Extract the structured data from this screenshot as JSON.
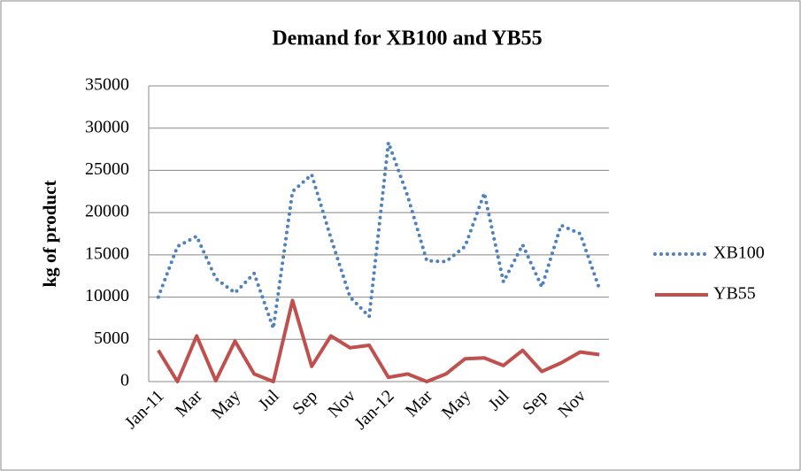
{
  "chart_data": {
    "type": "line",
    "title": "Demand for XB100 and YB55",
    "y_label": "kg of product",
    "categories": [
      "Jan-11",
      null,
      "Mar",
      null,
      "May",
      null,
      "Jul",
      null,
      "Sep",
      null,
      "Nov",
      null,
      "Jan-12",
      null,
      "Mar",
      null,
      "May",
      null,
      "Jul",
      null,
      "Sep",
      null,
      "Nov",
      null
    ],
    "series": [
      {
        "name": "XB100",
        "color": "#4f81bd",
        "dash": "dotted",
        "values": [
          10000,
          16000,
          17200,
          12200,
          10500,
          12800,
          6300,
          22500,
          24500,
          17000,
          10000,
          7700,
          28300,
          22000,
          14300,
          14200,
          16000,
          22300,
          11800,
          16200,
          11200,
          18500,
          17500,
          11000
        ]
      },
      {
        "name": "YB55",
        "color": "#c0504d",
        "dash": "solid",
        "values": [
          3700,
          0,
          5400,
          100,
          4800,
          900,
          0,
          9600,
          1800,
          5400,
          4000,
          4300,
          500,
          900,
          0,
          900,
          2700,
          2800,
          1900,
          3700,
          1200,
          2200,
          3500,
          3200
        ]
      }
    ],
    "ylim": [
      0,
      35000
    ],
    "yticks": [
      0,
      5000,
      10000,
      15000,
      20000,
      25000,
      30000,
      35000
    ],
    "grid": true,
    "legend": "right"
  }
}
